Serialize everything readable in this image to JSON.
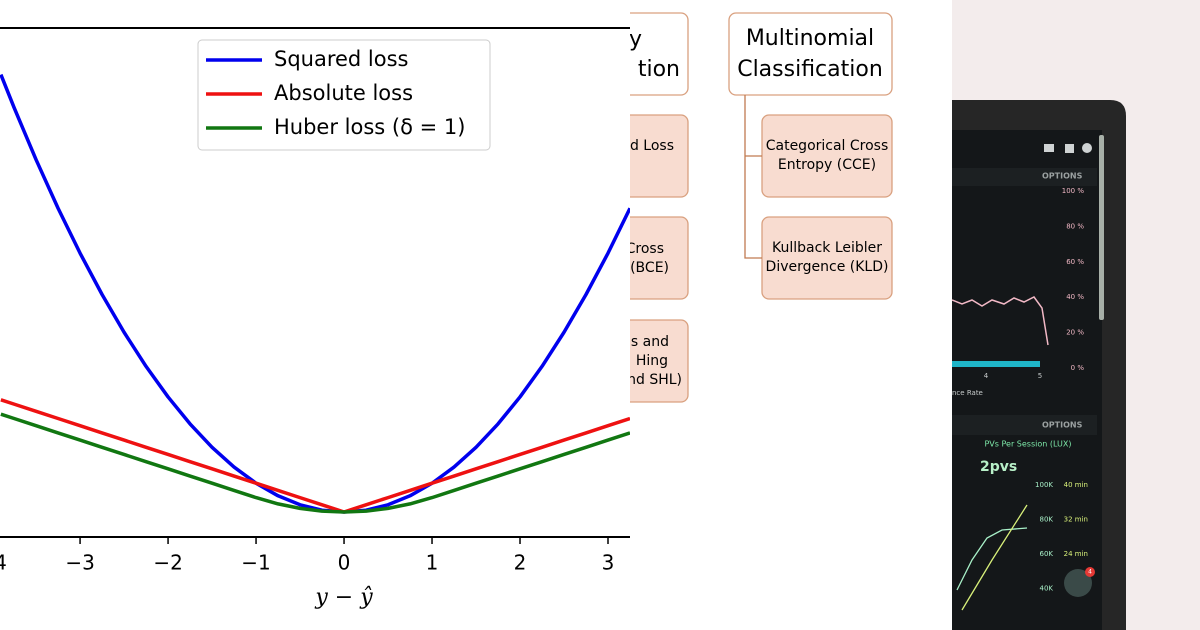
{
  "chart_data": {
    "type": "line",
    "x": [
      -3.9,
      -3.75,
      -3.5,
      -3.25,
      -3,
      -2.75,
      -2.5,
      -2.25,
      -2,
      -1.75,
      -1.5,
      -1.25,
      -1,
      -0.75,
      -0.5,
      -0.25,
      0,
      0.25,
      0.5,
      0.75,
      1,
      1.25,
      1.5,
      1.75,
      2,
      2.25,
      2.5,
      2.75,
      3,
      3.25
    ],
    "series": [
      {
        "name": "Squared loss",
        "color": "#0000ee",
        "values": [
          15.21,
          14.0625,
          12.25,
          10.5625,
          9,
          7.5625,
          6.25,
          5.0625,
          4,
          3.0625,
          2.25,
          1.5625,
          1,
          0.5625,
          0.25,
          0.0625,
          0,
          0.0625,
          0.25,
          0.5625,
          1,
          1.5625,
          2.25,
          3.0625,
          4,
          5.0625,
          6.25,
          7.5625,
          9,
          10.5625
        ]
      },
      {
        "name": "Absolute loss",
        "color": "#ee1111",
        "values": [
          3.9,
          3.75,
          3.5,
          3.25,
          3,
          2.75,
          2.5,
          2.25,
          2,
          1.75,
          1.5,
          1.25,
          1,
          0.75,
          0.5,
          0.25,
          0,
          0.25,
          0.5,
          0.75,
          1,
          1.25,
          1.5,
          1.75,
          2,
          2.25,
          2.5,
          2.75,
          3,
          3.25
        ]
      },
      {
        "name": "Huber loss (δ = 1)",
        "color": "#117711",
        "values": [
          3.4,
          3.25,
          3,
          2.75,
          2.5,
          2.25,
          2,
          1.75,
          1.5,
          1.25,
          1,
          0.75,
          0.5,
          0.28125,
          0.125,
          0.03125,
          0,
          0.03125,
          0.125,
          0.28125,
          0.5,
          0.75,
          1,
          1.25,
          1.5,
          1.75,
          2,
          2.25,
          2.5,
          2.75
        ]
      }
    ],
    "xlabel": "y − ŷ",
    "xlim": [
      -3.91,
      3.25
    ],
    "ylim": [
      -0.87,
      16.83
    ],
    "xticks": [
      {
        "value": -4,
        "label": "−4"
      },
      {
        "value": -3,
        "label": "−3"
      },
      {
        "value": -2,
        "label": "−2"
      },
      {
        "value": -1,
        "label": "−1"
      },
      0,
      1,
      2,
      3
    ],
    "legend": "upper center"
  },
  "diagram": {
    "left_boxes": [
      {
        "lines": [
          "y",
          "tion"
        ]
      },
      {
        "lines": [
          "d Loss"
        ]
      },
      {
        "lines": [
          "Cross",
          "(BCE)"
        ]
      },
      {
        "lines": [
          "s and",
          "Hing",
          "nd SHL)"
        ]
      }
    ],
    "parent": {
      "lines": [
        "Multinomial",
        "Classification"
      ]
    },
    "children": [
      {
        "lines": [
          "Categorical Cross",
          "Entropy (CCE)"
        ]
      },
      {
        "lines": [
          "Kullback Leibler",
          "Divergence (KLD)"
        ]
      }
    ]
  },
  "photo": {
    "options_1": "OPTIONS",
    "percent_labels": [
      "100 %",
      "80 %",
      "60 %",
      "40 %",
      "20 %",
      "0 %"
    ],
    "axis_labels": [
      "4",
      "5"
    ],
    "axis_title": "nce Rate",
    "options_2": "OPTIONS",
    "panel_title": "PVs Per Session (LUX)",
    "big_value": "2pvs",
    "left_labels": [
      "100K",
      "80K",
      "60K",
      "40K"
    ],
    "right_labels": [
      "40 min",
      "32 min",
      "24 min"
    ],
    "badge": "4"
  }
}
